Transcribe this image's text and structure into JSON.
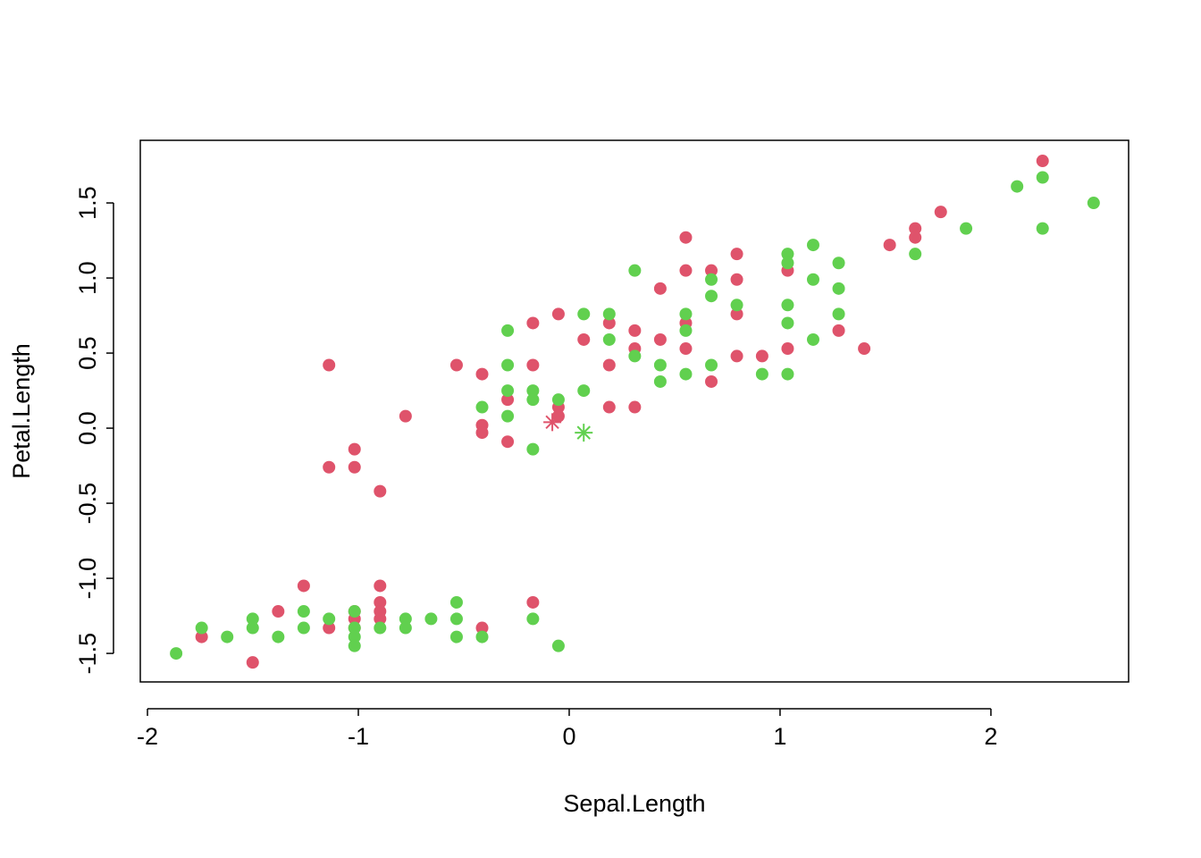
{
  "chart_data": {
    "type": "scatter",
    "x_label": "Sepal.Length",
    "y_label": "Petal.Length",
    "xlim": [
      -2.034,
      2.653
    ],
    "ylim": [
      -1.69,
      1.917
    ],
    "xticks": [
      -2,
      -1,
      0,
      1,
      2
    ],
    "yticks": [
      {
        "value": -1.5,
        "label": "-1.5"
      },
      {
        "value": -1.0,
        "label": "-1.0"
      },
      {
        "value": -0.5,
        "label": "-0.5"
      },
      {
        "value": 0,
        "label": "0.0"
      },
      {
        "value": 0.5,
        "label": "0.5"
      },
      {
        "value": 1.0,
        "label": "1.0"
      },
      {
        "value": 1.5,
        "label": "1.5"
      }
    ],
    "series": [
      {
        "color": "#DF536B",
        "marker": "dot",
        "x": [
          2.245,
          1.762,
          1.641,
          1.641,
          1.52,
          0.553,
          0.553,
          0.674,
          0.795,
          0.795,
          0.432,
          0.795,
          -0.051,
          -0.172,
          0.19,
          0.311,
          0.069,
          0.432,
          0.553,
          0.311,
          0.553,
          1.399,
          1.036,
          1.278,
          0.795,
          0.915,
          -0.534,
          -0.172,
          0.19,
          -0.413,
          -1.139,
          0.674,
          -0.292,
          0.19,
          0.311,
          -0.051,
          -0.051,
          -0.776,
          -0.413,
          -0.413,
          -0.292,
          -1.018,
          -1.139,
          -1.018,
          -0.897,
          1.036,
          -1.259,
          -0.897,
          -1.38,
          -1.018,
          -0.897,
          -0.897,
          -0.897,
          -1.018,
          -1.139,
          -0.413,
          -0.172,
          -1.743,
          -1.501,
          -1.018
        ],
        "y": [
          1.78,
          1.44,
          1.33,
          1.27,
          1.22,
          1.27,
          1.05,
          1.05,
          1.16,
          0.99,
          0.93,
          0.76,
          0.76,
          0.7,
          0.7,
          0.65,
          0.59,
          0.59,
          0.7,
          0.53,
          0.53,
          0.53,
          0.53,
          0.65,
          0.48,
          0.48,
          0.42,
          0.42,
          0.42,
          0.36,
          0.42,
          0.31,
          0.19,
          0.14,
          0.14,
          0.14,
          0.08,
          0.08,
          0.02,
          -0.03,
          -0.09,
          -0.14,
          -0.26,
          -0.26,
          -0.42,
          1.05,
          -1.05,
          -1.05,
          -1.22,
          -1.22,
          -1.16,
          -1.22,
          -1.27,
          -1.27,
          -1.33,
          -1.33,
          -1.16,
          -1.39,
          -1.56,
          -1.33
        ]
      },
      {
        "color": "#61D04F",
        "marker": "dot",
        "x": [
          2.245,
          2.124,
          2.487,
          2.245,
          1.882,
          1.641,
          1.157,
          1.036,
          1.036,
          1.278,
          0.311,
          1.157,
          0.674,
          1.278,
          0.674,
          0.795,
          1.036,
          0.069,
          0.19,
          0.553,
          1.278,
          1.036,
          -0.292,
          0.553,
          0.19,
          1.157,
          0.311,
          -0.292,
          0.432,
          0.674,
          0.553,
          0.915,
          1.036,
          0.432,
          -0.292,
          -0.172,
          0.069,
          -0.172,
          -0.051,
          -0.413,
          -0.292,
          -0.172,
          -1.259,
          -1.139,
          -1.018,
          -1.501,
          -0.776,
          -0.655,
          -0.534,
          -0.534,
          -0.172,
          -1.743,
          -1.501,
          -1.259,
          -1.018,
          -0.897,
          -0.776,
          -1.622,
          -1.38,
          -1.018,
          -0.534,
          -0.413,
          -1.018,
          -0.051,
          -1.864
        ],
        "y": [
          1.67,
          1.61,
          1.5,
          1.33,
          1.33,
          1.16,
          1.22,
          1.16,
          1.1,
          1.1,
          1.05,
          0.99,
          0.99,
          0.93,
          0.88,
          0.82,
          0.82,
          0.76,
          0.76,
          0.76,
          0.76,
          0.7,
          0.65,
          0.65,
          0.59,
          0.59,
          0.48,
          0.42,
          0.42,
          0.42,
          0.36,
          0.36,
          0.36,
          0.31,
          0.25,
          0.25,
          0.25,
          0.19,
          0.19,
          0.14,
          0.08,
          -0.14,
          -1.22,
          -1.27,
          -1.22,
          -1.27,
          -1.27,
          -1.27,
          -1.27,
          -1.16,
          -1.27,
          -1.33,
          -1.33,
          -1.33,
          -1.33,
          -1.33,
          -1.33,
          -1.39,
          -1.39,
          -1.39,
          -1.39,
          -1.39,
          -1.45,
          -1.45,
          -1.5
        ]
      },
      {
        "color": "#DF536B",
        "marker": "asterisk",
        "x": [
          -0.08
        ],
        "y": [
          0.04
        ]
      },
      {
        "color": "#61D04F",
        "marker": "asterisk",
        "x": [
          0.069
        ],
        "y": [
          -0.03
        ]
      }
    ]
  }
}
